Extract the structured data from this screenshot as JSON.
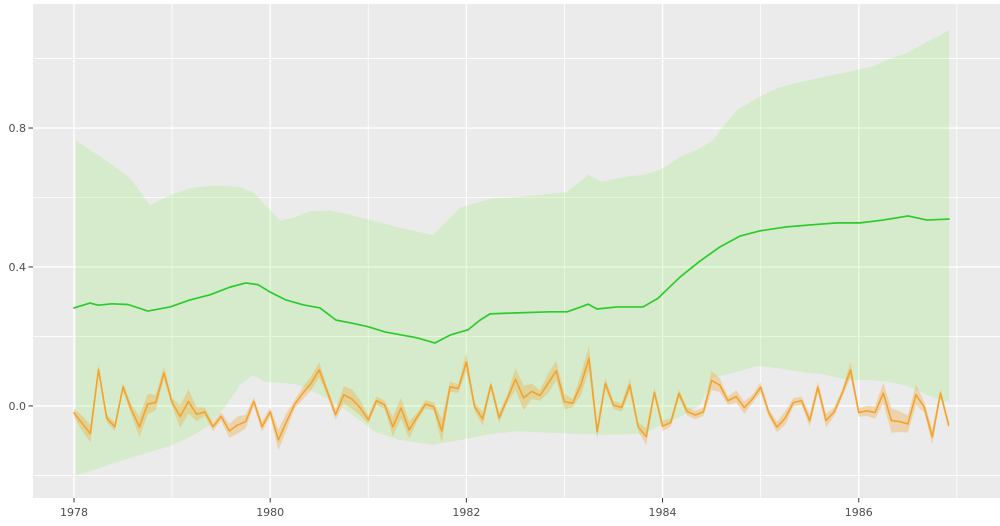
{
  "chart_data": {
    "type": "line",
    "title": "",
    "xlabel": "",
    "ylabel": "",
    "grid": true,
    "legend": "none",
    "xlim": [
      1977.582,
      1987.44
    ],
    "ylim": [
      -0.265,
      1.157
    ],
    "x_ticks": {
      "major": [
        1978,
        1980,
        1982,
        1984,
        1986
      ],
      "minor": [
        1979,
        1981,
        1983,
        1985,
        1987
      ],
      "labels": [
        "1978",
        "1980",
        "1982",
        "1984",
        "1986"
      ]
    },
    "y_ticks": {
      "major": [
        0.0,
        0.4,
        0.8
      ],
      "minor": [
        -0.2,
        0.2,
        0.6,
        1.0
      ],
      "labels": [
        "0.0",
        "0.4",
        "0.8"
      ]
    },
    "colors": {
      "panel_bg": "#EBEBEB",
      "grid": "#FFFFFF",
      "axis_text": "#4D4D4D",
      "tick_mark": "#333333",
      "green_line": "#2BCB2B",
      "green_ribbon": "rgba(150,235,112,0.25)",
      "orange_line": "#F3A32C",
      "orange_ribbon": "rgba(243,163,44,0.32)"
    },
    "series": [
      {
        "name": "green-smoothed",
        "points": [
          [
            1978.0,
            0.282
          ],
          [
            1978.163,
            0.296
          ],
          [
            1978.245,
            0.29
          ],
          [
            1978.387,
            0.294
          ],
          [
            1978.55,
            0.292
          ],
          [
            1978.754,
            0.273
          ],
          [
            1978.979,
            0.285
          ],
          [
            1979.183,
            0.305
          ],
          [
            1979.386,
            0.32
          ],
          [
            1979.59,
            0.342
          ],
          [
            1979.753,
            0.354
          ],
          [
            1979.876,
            0.349
          ],
          [
            1979.998,
            0.328
          ],
          [
            1980.161,
            0.305
          ],
          [
            1980.334,
            0.291
          ],
          [
            1980.508,
            0.282
          ],
          [
            1980.671,
            0.247
          ],
          [
            1980.824,
            0.239
          ],
          [
            1980.997,
            0.228
          ],
          [
            1981.17,
            0.213
          ],
          [
            1981.323,
            0.205
          ],
          [
            1981.497,
            0.196
          ],
          [
            1981.68,
            0.181
          ],
          [
            1981.833,
            0.204
          ],
          [
            1982.016,
            0.219
          ],
          [
            1982.139,
            0.247
          ],
          [
            1982.241,
            0.265
          ],
          [
            1982.516,
            0.268
          ],
          [
            1982.853,
            0.271
          ],
          [
            1983.026,
            0.271
          ],
          [
            1983.158,
            0.284
          ],
          [
            1983.24,
            0.293
          ],
          [
            1983.332,
            0.279
          ],
          [
            1983.536,
            0.285
          ],
          [
            1983.801,
            0.285
          ],
          [
            1983.954,
            0.31
          ],
          [
            1984.178,
            0.371
          ],
          [
            1984.382,
            0.417
          ],
          [
            1984.586,
            0.458
          ],
          [
            1984.79,
            0.489
          ],
          [
            1984.994,
            0.504
          ],
          [
            1985.249,
            0.515
          ],
          [
            1985.503,
            0.521
          ],
          [
            1985.779,
            0.527
          ],
          [
            1986.013,
            0.527
          ],
          [
            1986.247,
            0.535
          ],
          [
            1986.502,
            0.547
          ],
          [
            1986.696,
            0.535
          ],
          [
            1986.92,
            0.538
          ]
        ],
        "ribbon": [
          [
            1978.02,
            -0.199,
            0.765
          ],
          [
            1978.163,
            -0.188,
            0.737
          ],
          [
            1978.367,
            -0.168,
            0.699
          ],
          [
            1978.571,
            -0.15,
            0.656
          ],
          [
            1978.775,
            -0.133,
            0.578
          ],
          [
            1978.979,
            -0.115,
            0.607
          ],
          [
            1979.183,
            -0.089,
            0.627
          ],
          [
            1979.386,
            -0.055,
            0.634
          ],
          [
            1979.539,
            -0.003,
            0.634
          ],
          [
            1979.692,
            0.06,
            0.63
          ],
          [
            1979.825,
            0.089,
            0.615
          ],
          [
            1979.947,
            0.069,
            0.58
          ],
          [
            1980.1,
            0.066,
            0.533
          ],
          [
            1980.253,
            0.063,
            0.543
          ],
          [
            1980.406,
            0.046,
            0.56
          ],
          [
            1980.61,
            0.017,
            0.563
          ],
          [
            1980.814,
            -0.02,
            0.55
          ],
          [
            1981.068,
            -0.075,
            0.532
          ],
          [
            1981.323,
            -0.098,
            0.513
          ],
          [
            1981.66,
            -0.112,
            0.492
          ],
          [
            1981.935,
            -0.098,
            0.57
          ],
          [
            1982.241,
            -0.081,
            0.596
          ],
          [
            1982.516,
            -0.073,
            0.601
          ],
          [
            1982.853,
            -0.077,
            0.61
          ],
          [
            1983.026,
            -0.079,
            0.616
          ],
          [
            1983.24,
            -0.082,
            0.665
          ],
          [
            1983.383,
            -0.083,
            0.645
          ],
          [
            1983.597,
            -0.082,
            0.659
          ],
          [
            1983.801,
            -0.08,
            0.665
          ],
          [
            1983.974,
            -0.057,
            0.679
          ],
          [
            1984.178,
            -0.032,
            0.717
          ],
          [
            1984.382,
            0.003,
            0.742
          ],
          [
            1984.515,
            0.081,
            0.765
          ],
          [
            1984.606,
            0.087,
            0.8
          ],
          [
            1984.759,
            0.098,
            0.852
          ],
          [
            1984.963,
            0.115,
            0.886
          ],
          [
            1985.167,
            0.109,
            0.915
          ],
          [
            1985.401,
            0.098,
            0.932
          ],
          [
            1985.636,
            0.091,
            0.947
          ],
          [
            1985.881,
            0.075,
            0.961
          ],
          [
            1986.146,
            0.074,
            0.978
          ],
          [
            1986.288,
            0.07,
            0.996
          ],
          [
            1986.492,
            0.058,
            1.016
          ],
          [
            1986.696,
            0.032,
            1.048
          ],
          [
            1986.829,
            0.017,
            1.066
          ],
          [
            1986.92,
            0.012,
            1.082
          ]
        ]
      },
      {
        "name": "orange-monthly",
        "t0": 1978.0,
        "dt": 0.0833333,
        "values": [
          -0.02,
          -0.05,
          -0.08,
          0.105,
          -0.035,
          -0.06,
          0.055,
          -0.01,
          -0.06,
          0.005,
          0.01,
          0.095,
          0.01,
          -0.03,
          0.013,
          -0.024,
          -0.017,
          -0.06,
          -0.03,
          -0.072,
          -0.055,
          -0.045,
          0.013,
          -0.06,
          -0.017,
          -0.098,
          -0.045,
          0.005,
          0.037,
          0.065,
          0.104,
          0.04,
          -0.025,
          0.032,
          0.02,
          -0.005,
          -0.04,
          0.015,
          0.003,
          -0.06,
          -0.006,
          -0.069,
          -0.031,
          0.005,
          -0.002,
          -0.072,
          0.055,
          0.05,
          0.126,
          -0.002,
          -0.037,
          0.06,
          -0.034,
          0.02,
          0.077,
          0.023,
          0.042,
          0.03,
          0.065,
          0.101,
          0.012,
          0.008,
          0.06,
          0.137,
          -0.074,
          0.065,
          0.002,
          -0.004,
          0.06,
          -0.059,
          -0.089,
          0.039,
          -0.058,
          -0.048,
          0.036,
          -0.016,
          -0.026,
          -0.017,
          0.073,
          0.06,
          0.015,
          0.027,
          -0.005,
          0.02,
          0.054,
          -0.02,
          -0.061,
          -0.035,
          0.01,
          0.015,
          -0.042,
          0.054,
          -0.042,
          -0.017,
          0.038,
          0.104,
          -0.019,
          -0.014,
          -0.019,
          0.037,
          -0.042,
          -0.045,
          -0.052,
          0.032,
          -0.003,
          -0.089,
          0.037,
          -0.055
        ],
        "band_halfwidth": [
          0.012,
          0.022,
          0.025,
          0.015,
          0.012,
          0.012,
          0.012,
          0.015,
          0.03,
          0.03,
          0.022,
          0.018,
          0.012,
          0.032,
          0.035,
          0.02,
          0.012,
          0.012,
          0.012,
          0.02,
          0.025,
          0.02,
          0.012,
          0.015,
          0.012,
          0.03,
          0.025,
          0.012,
          0.018,
          0.02,
          0.022,
          0.012,
          0.015,
          0.025,
          0.028,
          0.022,
          0.012,
          0.012,
          0.012,
          0.028,
          0.03,
          0.025,
          0.012,
          0.012,
          0.012,
          0.035,
          0.015,
          0.012,
          0.027,
          0.012,
          0.02,
          0.012,
          0.015,
          0.012,
          0.032,
          0.035,
          0.022,
          0.015,
          0.028,
          0.028,
          0.022,
          0.012,
          0.03,
          0.035,
          0.022,
          0.015,
          0.012,
          0.012,
          0.02,
          0.012,
          0.025,
          0.012,
          0.015,
          0.012,
          0.012,
          0.012,
          0.012,
          0.012,
          0.028,
          0.02,
          0.012,
          0.018,
          0.018,
          0.012,
          0.015,
          0.012,
          0.015,
          0.02,
          0.012,
          0.012,
          0.018,
          0.015,
          0.02,
          0.012,
          0.012,
          0.022,
          0.012,
          0.015,
          0.018,
          0.03,
          0.035,
          0.03,
          0.025,
          0.03,
          0.015,
          0.022,
          0.012,
          0.012
        ]
      }
    ]
  }
}
